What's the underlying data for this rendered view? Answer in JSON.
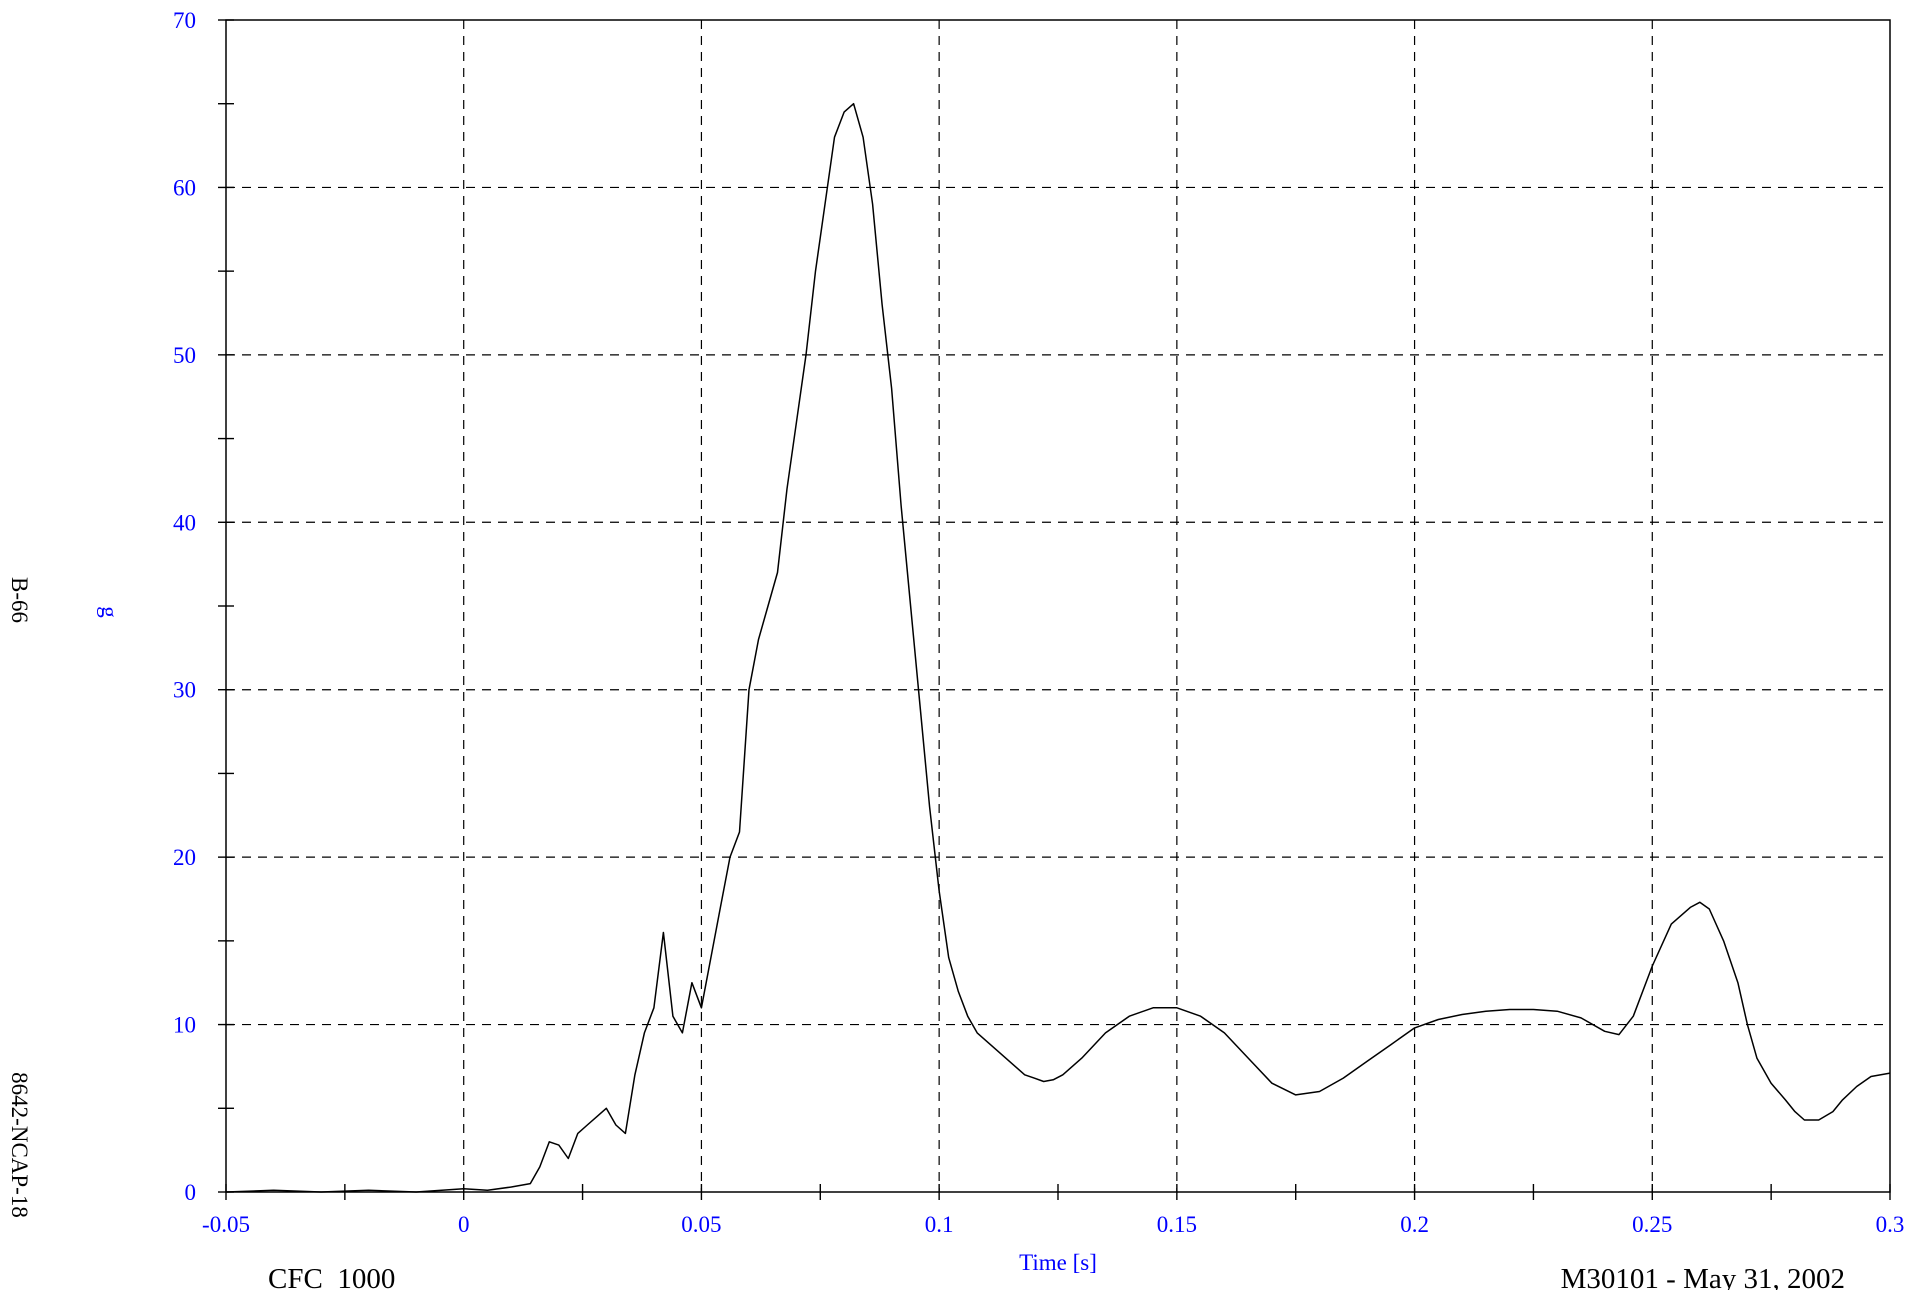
{
  "chart_data": {
    "type": "line",
    "title": "",
    "xlabel": "Time [s]",
    "ylabel": "g",
    "xlim": [
      -0.05,
      0.3
    ],
    "ylim": [
      0,
      70
    ],
    "x_ticks": [
      -0.05,
      0,
      0.05,
      0.1,
      0.15,
      0.2,
      0.25,
      0.3
    ],
    "x_tick_labels": [
      "-0.05",
      "0",
      "0.05",
      "0.1",
      "0.15",
      "0.2",
      "0.25",
      "0.3"
    ],
    "y_ticks": [
      0,
      10,
      20,
      30,
      40,
      50,
      60,
      70
    ],
    "y_tick_labels": [
      "0",
      "10",
      "20",
      "30",
      "40",
      "50",
      "60",
      "70"
    ],
    "grid": true,
    "grid_style": "dashed",
    "series": [
      {
        "color": "#000000",
        "x": [
          -0.05,
          -0.04,
          -0.03,
          -0.02,
          -0.01,
          0,
          0.005,
          0.01,
          0.014,
          0.016,
          0.018,
          0.02,
          0.022,
          0.024,
          0.026,
          0.028,
          0.03,
          0.032,
          0.034,
          0.036,
          0.038,
          0.04,
          0.042,
          0.044,
          0.046,
          0.048,
          0.05,
          0.052,
          0.054,
          0.056,
          0.058,
          0.06,
          0.062,
          0.064,
          0.066,
          0.068,
          0.07,
          0.072,
          0.074,
          0.076,
          0.078,
          0.08,
          0.082,
          0.084,
          0.086,
          0.088,
          0.09,
          0.092,
          0.094,
          0.096,
          0.098,
          0.1,
          0.102,
          0.104,
          0.106,
          0.108,
          0.11,
          0.112,
          0.114,
          0.116,
          0.118,
          0.12,
          0.122,
          0.124,
          0.126,
          0.13,
          0.135,
          0.14,
          0.145,
          0.15,
          0.155,
          0.16,
          0.165,
          0.17,
          0.175,
          0.18,
          0.185,
          0.19,
          0.195,
          0.2,
          0.205,
          0.21,
          0.215,
          0.22,
          0.225,
          0.23,
          0.235,
          0.24,
          0.243,
          0.246,
          0.25,
          0.254,
          0.258,
          0.26,
          0.262,
          0.265,
          0.268,
          0.27,
          0.272,
          0.275,
          0.278,
          0.28,
          0.282,
          0.285,
          0.288,
          0.29,
          0.293,
          0.296,
          0.3
        ],
        "y": [
          0,
          0.1,
          0,
          0.1,
          0,
          0.2,
          0.1,
          0.3,
          0.5,
          1.5,
          3.0,
          2.8,
          2.0,
          3.5,
          4.0,
          4.5,
          5.0,
          4.0,
          3.5,
          7.0,
          9.5,
          11.0,
          15.5,
          10.5,
          9.5,
          12.5,
          11.0,
          14.0,
          17.0,
          20.0,
          21.5,
          30.0,
          33.0,
          35.0,
          37.0,
          42.0,
          46.0,
          50.0,
          55.0,
          59.0,
          63.0,
          64.5,
          65.0,
          63.0,
          59.0,
          53.0,
          48.0,
          41.0,
          35.0,
          29.0,
          23.0,
          18.0,
          14.0,
          12.0,
          10.5,
          9.5,
          9.0,
          8.5,
          8.0,
          7.5,
          7.0,
          6.8,
          6.6,
          6.7,
          7.0,
          8.0,
          9.5,
          10.5,
          11.0,
          11.0,
          10.5,
          9.5,
          8.0,
          6.5,
          5.8,
          6.0,
          6.8,
          7.8,
          8.8,
          9.8,
          10.3,
          10.6,
          10.8,
          10.9,
          10.9,
          10.8,
          10.4,
          9.6,
          9.4,
          10.5,
          13.5,
          16.0,
          17.0,
          17.3,
          16.9,
          15.0,
          12.5,
          10.0,
          8.0,
          6.5,
          5.5,
          4.8,
          4.3,
          4.3,
          4.8,
          5.5,
          6.3,
          6.9,
          7.1
        ]
      }
    ]
  },
  "footer": {
    "left_label": "CFC_1000",
    "right_label": "M30101 - May 31, 2002"
  },
  "side": {
    "top_label": "B-66",
    "bottom_label": "8642-NCAP-18"
  }
}
